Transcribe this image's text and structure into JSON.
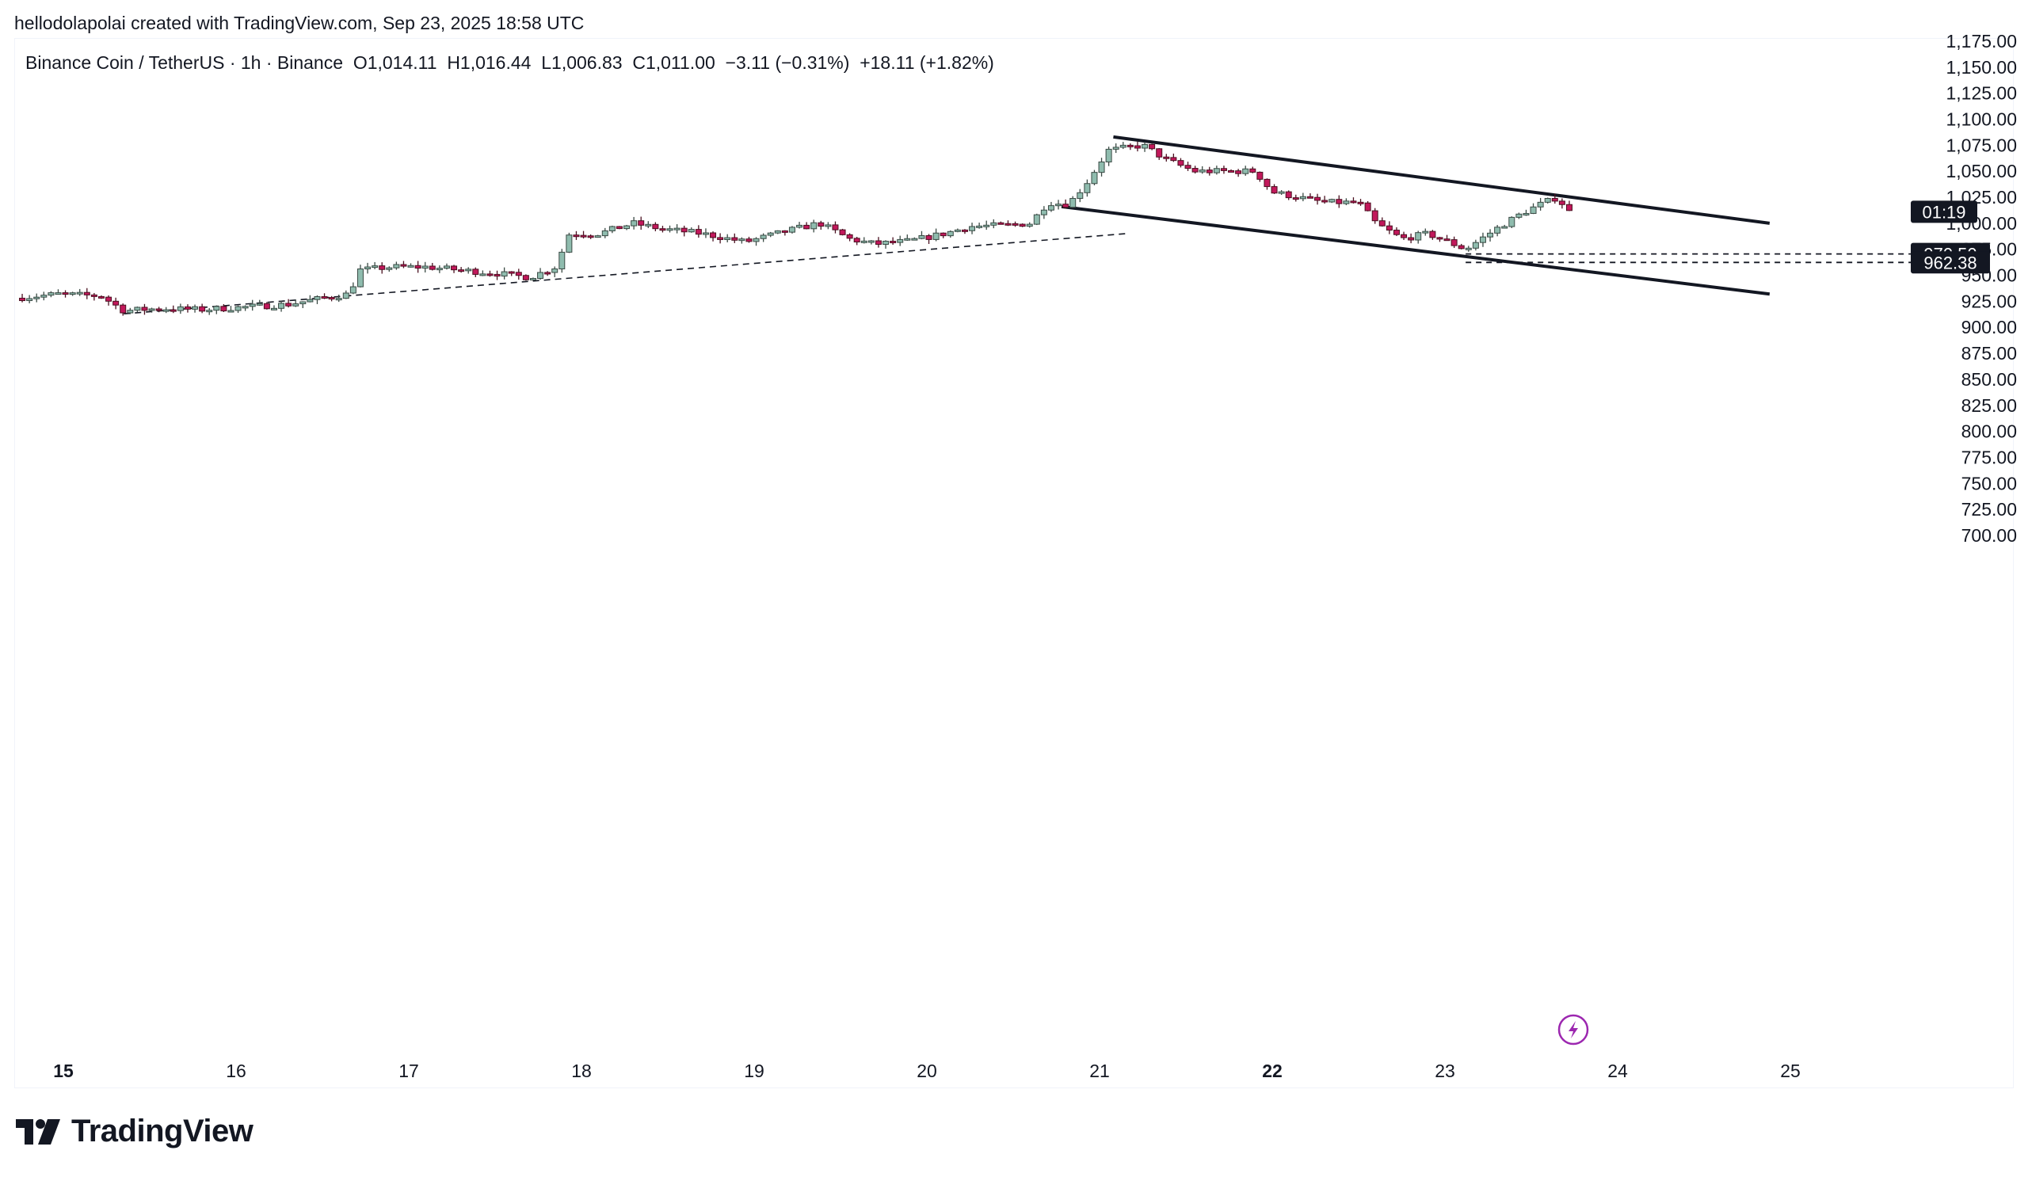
{
  "header": {
    "credit": "hellodolapolai created with TradingView.com, Sep 23, 2025 18:58 UTC"
  },
  "legend": {
    "symbol": "Binance Coin / TetherUS · 1h · Binance",
    "open": "O1,014.11",
    "high": "H1,016.44",
    "low": "L1,006.83",
    "close": "C1,011.00",
    "change": "−3.11 (−0.31%)",
    "change2": "+18.11 (+1.82%)"
  },
  "colors": {
    "up": "#8fbcae",
    "up_border": "#3a4a44",
    "down": "#c2185b",
    "down_border": "#4a1020",
    "line": "#131722",
    "axis_text": "#131722",
    "lightning": "#9c27b0"
  },
  "brand": {
    "name": "TradingView"
  },
  "chart_data": {
    "type": "candlestick",
    "symbol": "BNBUSDT",
    "timeframe": "1h",
    "ylim": [
      690,
      1175
    ],
    "y_ticks": [
      "1,175.00",
      "1,150.00",
      "1,125.00",
      "1,100.00",
      "1,075.00",
      "1,050.00",
      "1,025.00",
      "1,000.00",
      "975.00",
      "950.00",
      "925.00",
      "900.00",
      "875.00",
      "850.00",
      "825.00",
      "800.00",
      "775.00",
      "750.00",
      "725.00",
      "700.00"
    ],
    "x_ticks": [
      {
        "day": 15,
        "label": "15",
        "bold": true
      },
      {
        "day": 16,
        "label": "16",
        "bold": false
      },
      {
        "day": 17,
        "label": "17",
        "bold": false
      },
      {
        "day": 18,
        "label": "18",
        "bold": false
      },
      {
        "day": 19,
        "label": "19",
        "bold": false
      },
      {
        "day": 20,
        "label": "20",
        "bold": false
      },
      {
        "day": 21,
        "label": "21",
        "bold": false
      },
      {
        "day": 22,
        "label": "22",
        "bold": true
      },
      {
        "day": 23,
        "label": "23",
        "bold": false
      },
      {
        "day": 24,
        "label": "24",
        "bold": false
      },
      {
        "day": 25,
        "label": "25",
        "bold": false
      }
    ],
    "x_range_days": [
      14.72,
      25.6
    ],
    "price_labels": [
      {
        "value": 1011.0,
        "text": "01:19"
      },
      {
        "value": 970.5,
        "text": "970.50"
      },
      {
        "value": 962.38,
        "text": "962.38"
      }
    ],
    "path_points": [
      [
        14.72,
        928
      ],
      [
        14.97,
        932
      ],
      [
        15.22,
        930
      ],
      [
        15.35,
        916
      ],
      [
        15.55,
        918
      ],
      [
        15.8,
        917
      ],
      [
        16.1,
        920
      ],
      [
        16.3,
        922
      ],
      [
        16.5,
        928
      ],
      [
        16.65,
        932
      ],
      [
        16.72,
        955
      ],
      [
        16.9,
        958
      ],
      [
        17.1,
        958
      ],
      [
        17.3,
        955
      ],
      [
        17.5,
        952
      ],
      [
        17.7,
        948
      ],
      [
        17.85,
        958
      ],
      [
        17.93,
        990
      ],
      [
        18.1,
        990
      ],
      [
        18.3,
        1000
      ],
      [
        18.45,
        995
      ],
      [
        18.7,
        990
      ],
      [
        18.95,
        982
      ],
      [
        19.2,
        993
      ],
      [
        19.38,
        1000
      ],
      [
        19.55,
        985
      ],
      [
        19.7,
        980
      ],
      [
        19.9,
        983
      ],
      [
        20.1,
        990
      ],
      [
        20.25,
        997
      ],
      [
        20.45,
        998
      ],
      [
        20.6,
        1000
      ],
      [
        20.7,
        1020
      ],
      [
        20.82,
        1018
      ],
      [
        20.93,
        1040
      ],
      [
        21.05,
        1070
      ],
      [
        21.25,
        1075
      ],
      [
        21.4,
        1060
      ],
      [
        21.55,
        1050
      ],
      [
        21.75,
        1050
      ],
      [
        21.9,
        1050
      ],
      [
        22.0,
        1030
      ],
      [
        22.15,
        1025
      ],
      [
        22.3,
        1020
      ],
      [
        22.5,
        1020
      ],
      [
        22.6,
        1000
      ],
      [
        22.75,
        985
      ],
      [
        22.9,
        990
      ],
      [
        23.02,
        982
      ],
      [
        23.12,
        975
      ],
      [
        23.3,
        995
      ],
      [
        23.45,
        1010
      ],
      [
        23.55,
        1018
      ],
      [
        23.65,
        1025
      ],
      [
        23.72,
        1011
      ]
    ],
    "drawings": {
      "uptrend_dashed": {
        "from": [
          15.35,
          913
        ],
        "to": [
          21.15,
          990
        ]
      },
      "channel_upper": {
        "from": [
          21.08,
          1083
        ],
        "to": [
          24.88,
          1000
        ]
      },
      "channel_lower": {
        "from": [
          20.78,
          1016
        ],
        "to": [
          24.88,
          932
        ]
      },
      "hline_970": {
        "value": 970.5,
        "from_day": 23.12
      },
      "hline_962": {
        "value": 962.38,
        "from_day": 23.12
      }
    }
  }
}
